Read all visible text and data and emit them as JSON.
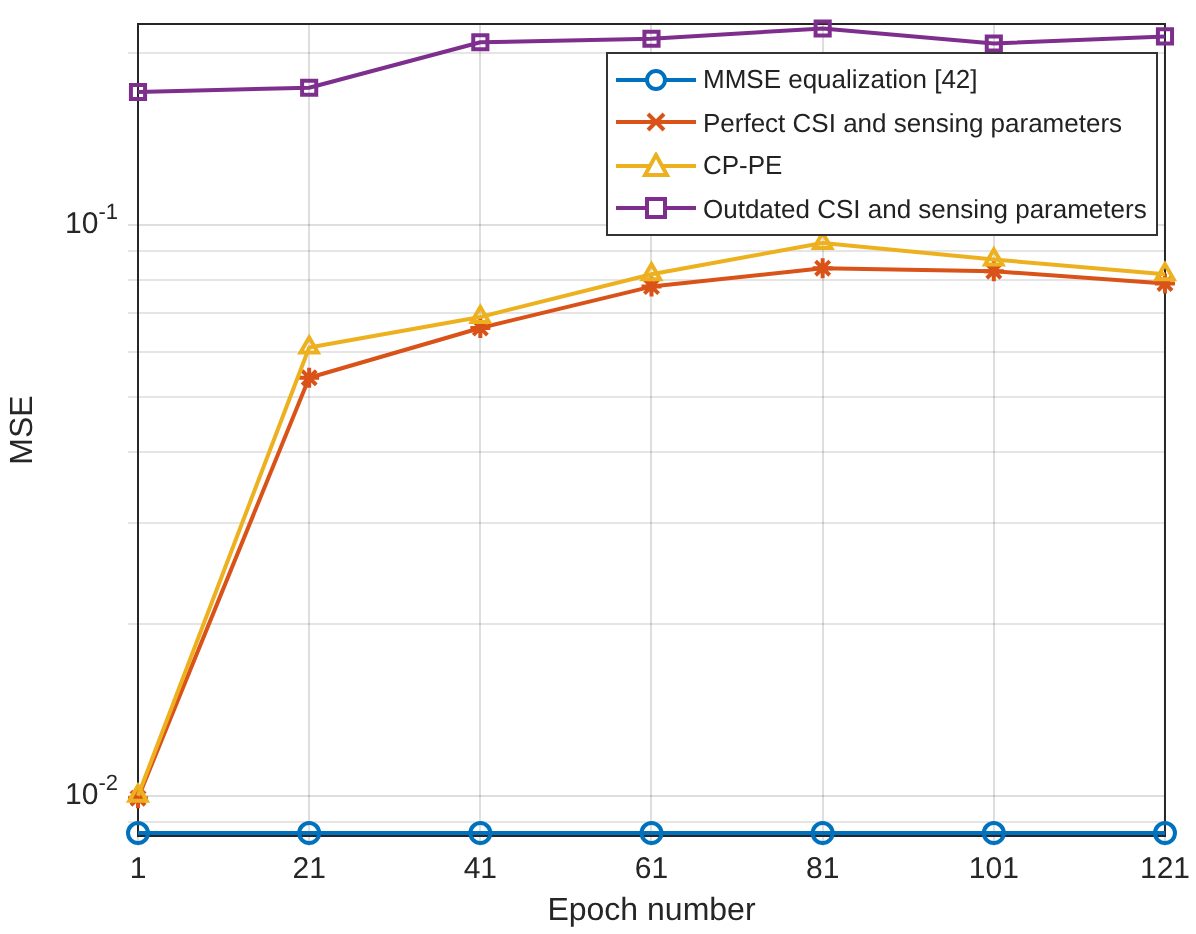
{
  "chart_data": {
    "type": "line",
    "xlabel": "Epoch number",
    "ylabel": "MSE",
    "log": "y",
    "grid": true,
    "legend": "top right",
    "line_style": "solid",
    "x": [
      1,
      21,
      41,
      61,
      81,
      101,
      121
    ],
    "xlim": [
      1,
      121
    ],
    "xticks": [
      1,
      21,
      41,
      61,
      81,
      101,
      121
    ],
    "ylim": [
      0.0085,
      0.225
    ],
    "yticks": [
      {
        "value": 0.009,
        "label": null
      },
      {
        "value": 0.01,
        "label": "10$^{-2}$"
      },
      {
        "value": 0.02,
        "label": null
      },
      {
        "value": 0.03,
        "label": null
      },
      {
        "value": 0.04,
        "label": null
      },
      {
        "value": 0.05,
        "label": null
      },
      {
        "value": 0.06,
        "label": null
      },
      {
        "value": 0.07,
        "label": null
      },
      {
        "value": 0.08,
        "label": null
      },
      {
        "value": 0.09,
        "label": null
      },
      {
        "value": 0.1,
        "label": "10$^{-1}$"
      },
      {
        "value": 0.2,
        "label": null
      }
    ],
    "series": [
      {
        "name": "MMSE equalization [42]",
        "color": "#0072bd",
        "marker": "circle",
        "values": [
          0.0086,
          0.0086,
          0.0086,
          0.0086,
          0.0086,
          0.0086,
          0.0086
        ]
      },
      {
        "name": "Perfect CSI and sensing parameters",
        "color": "#d95319",
        "marker": "cross",
        "values": [
          0.0099,
          0.054,
          0.066,
          0.078,
          0.084,
          0.083,
          0.079
        ]
      },
      {
        "name": "CP-PE",
        "color": "#edb120",
        "marker": "triangle",
        "values": [
          0.01,
          0.061,
          0.069,
          0.082,
          0.093,
          0.087,
          0.082
        ]
      },
      {
        "name": "Outdated CSI and sensing parameters",
        "color": "#7e2f8e",
        "marker": "square",
        "values": [
          0.171,
          0.174,
          0.209,
          0.212,
          0.221,
          0.208,
          0.214
        ]
      }
    ]
  }
}
